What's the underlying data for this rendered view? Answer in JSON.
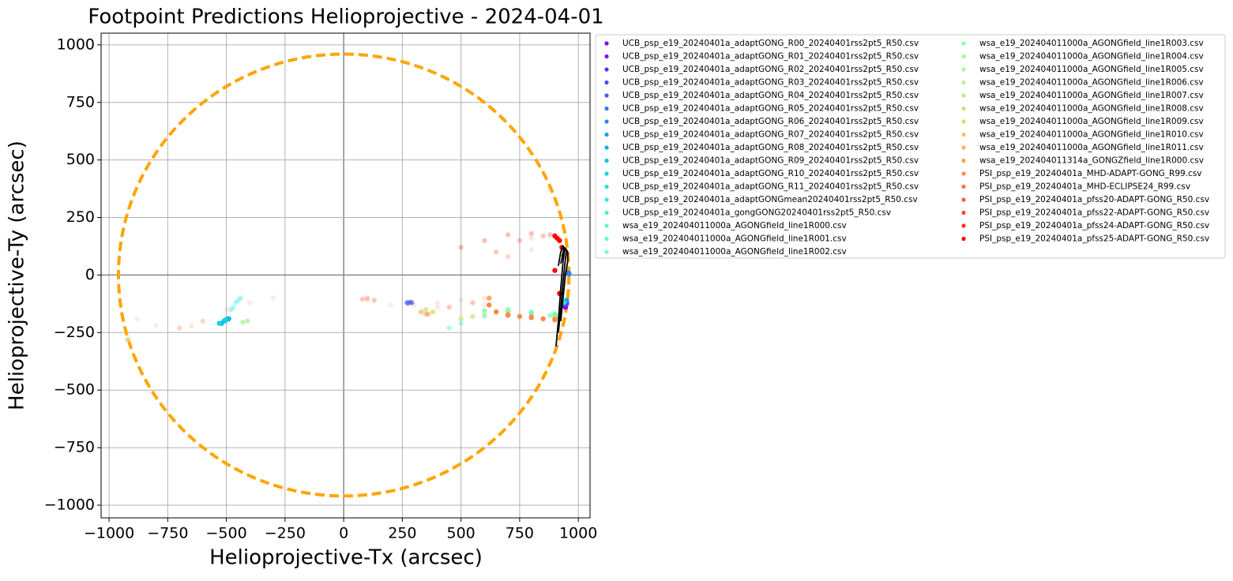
{
  "chart_data": {
    "type": "scatter",
    "title": "Footpoint Predictions Helioprojective - 2024-04-01",
    "x_label": "Helioprojective-Tx (arcsec)",
    "y_label": "Helioprojective-Ty (arcsec)",
    "xlim": [
      -1034,
      1050
    ],
    "ylim": [
      -1055,
      1051
    ],
    "xticks": [
      {
        "value": -1000,
        "label": "−1000"
      },
      {
        "value": -750,
        "label": "−750"
      },
      {
        "value": -500,
        "label": "−500"
      },
      {
        "value": -250,
        "label": "−250"
      },
      0,
      250,
      500,
      750,
      1000
    ],
    "yticks": [
      {
        "value": -1000,
        "label": "−1000"
      },
      {
        "value": -750,
        "label": "−750"
      },
      {
        "value": -500,
        "label": "−500"
      },
      {
        "value": -250,
        "label": "−250"
      },
      0,
      250,
      500,
      750,
      1000
    ],
    "grid": true,
    "legend": "outside-right",
    "limb": {
      "radius": 960,
      "color": "#ffa500"
    },
    "lines": [
      {
        "color": "#000000",
        "x": [
          905,
          915,
          925,
          935,
          942,
          935,
          925,
          915
        ],
        "y": [
          -310,
          -200,
          -60,
          60,
          110,
          125,
          100,
          40
        ]
      },
      {
        "color": "#000000",
        "x": [
          915,
          925,
          935,
          945,
          950,
          940,
          930
        ],
        "y": [
          -250,
          -150,
          -30,
          70,
          110,
          120,
          80
        ]
      },
      {
        "color": "#000000",
        "x": [
          925,
          935,
          945,
          955,
          955,
          945,
          935,
          925
        ],
        "y": [
          -200,
          -100,
          0,
          60,
          100,
          115,
          90,
          50
        ]
      }
    ],
    "series": [
      {
        "name": "UCB_psp_e19_20240401a_adaptGONG_R00_20240401rss2pt5_R50.csv",
        "color": "#8000ff",
        "alpha": 1,
        "x": [
          945,
          950
        ],
        "y": [
          -140,
          -120
        ]
      },
      {
        "name": "UCB_psp_e19_20240401a_adaptGONG_R01_20240401rss2pt5_R50.csv",
        "color": "#7018ff",
        "alpha": 1,
        "x": [
          945
        ],
        "y": [
          -130
        ]
      },
      {
        "name": "UCB_psp_e19_20240401a_adaptGONG_R02_20240401rss2pt5_R50.csv",
        "color": "#6130fe",
        "alpha": 1,
        "x": [
          950
        ],
        "y": [
          -125
        ]
      },
      {
        "name": "UCB_psp_e19_20240401a_adaptGONG_R03_20240401rss2pt5_R50.csv",
        "color": "#5148fc",
        "alpha": 0.6,
        "x": [
          270,
          285
        ],
        "y": [
          -120,
          -118
        ]
      },
      {
        "name": "UCB_psp_e19_20240401a_adaptGONG_R04_20240401rss2pt5_R50.csv",
        "color": "#425ffa",
        "alpha": 0.6,
        "x": [
          275,
          290
        ],
        "y": [
          -122,
          -120
        ]
      },
      {
        "name": "UCB_psp_e19_20240401a_adaptGONG_R05_20240401rss2pt5_R50.csv",
        "color": "#3275f8",
        "alpha": 1,
        "x": [
          955,
          960
        ],
        "y": [
          10,
          5
        ]
      },
      {
        "name": "UCB_psp_e19_20240401a_adaptGONG_R06_20240401rss2pt5_R50.csv",
        "color": "#238af5",
        "alpha": 1,
        "x": [
          960
        ],
        "y": [
          8
        ]
      },
      {
        "name": "UCB_psp_e19_20240401a_adaptGONG_R07_20240401rss2pt5_R50.csv",
        "color": "#139ef1",
        "alpha": 1,
        "x": [
          950
        ],
        "y": [
          -110
        ]
      },
      {
        "name": "UCB_psp_e19_20240401a_adaptGONG_R08_20240401rss2pt5_R50.csv",
        "color": "#04b0ed",
        "alpha": 1,
        "x": [
          -500,
          -490
        ],
        "y": [
          -195,
          -190
        ]
      },
      {
        "name": "UCB_psp_e19_20240401a_adaptGONG_R09_20240401rss2pt5_R50.csv",
        "color": "#0cc1e8",
        "alpha": 1,
        "x": [
          -520,
          -510,
          -495
        ],
        "y": [
          -210,
          -200,
          -190
        ]
      },
      {
        "name": "UCB_psp_e19_20240401a_adaptGONG_R10_20240401rss2pt5_R50.csv",
        "color": "#1bd0e2",
        "alpha": 1,
        "x": [
          -530,
          -505
        ],
        "y": [
          -210,
          -195
        ]
      },
      {
        "name": "UCB_psp_e19_20240401a_adaptGONG_R11_20240401rss2pt5_R50.csv",
        "color": "#2bdddd",
        "alpha": 1,
        "x": [
          940
        ],
        "y": [
          -120
        ]
      },
      {
        "name": "UCB_psp_e19_20240401a_adaptGONGmean20240401rss2pt5_R50.csv",
        "color": "#3ae8d6",
        "alpha": 0.4,
        "x": [
          -480,
          -460,
          -440
        ],
        "y": [
          -150,
          -120,
          -100
        ]
      },
      {
        "name": "UCB_psp_e19_20240401a_gongGONG20240401rss2pt5_R50.csv",
        "color": "#49f1d0",
        "alpha": 0.4,
        "x": [
          -470,
          -450
        ],
        "y": [
          -140,
          -110
        ]
      },
      {
        "name": "wsa_e19_202404011000a_AGONGfield_line1R000.csv",
        "color": "#59f8c8",
        "alpha": 0.5,
        "x": [
          450,
          500,
          600,
          700,
          800,
          900
        ],
        "y": [
          -230,
          -210,
          -180,
          -160,
          -165,
          -175
        ]
      },
      {
        "name": "wsa_e19_202404011000a_AGONGfield_line1R001.csv",
        "color": "#68fcc1",
        "alpha": 0.8,
        "x": [
          600,
          700,
          800,
          900
        ],
        "y": [
          -155,
          -155,
          -165,
          -170
        ]
      },
      {
        "name": "wsa_e19_202404011000a_AGONGfield_line1R002.csv",
        "color": "#78ffb9",
        "alpha": 0.8,
        "x": [
          700,
          800,
          900
        ],
        "y": [
          -150,
          -160,
          -170
        ]
      },
      {
        "name": "wsa_e19_202404011000a_AGONGfield_line1R003.csv",
        "color": "#87ffb0",
        "alpha": 0.8,
        "x": [
          880,
          920
        ],
        "y": [
          -175,
          -180
        ]
      },
      {
        "name": "wsa_e19_202404011000a_AGONGfield_line1R004.csv",
        "color": "#97fca7",
        "alpha": 0.8,
        "x": [
          900
        ],
        "y": [
          -185
        ]
      },
      {
        "name": "wsa_e19_202404011000a_AGONGfield_line1R005.csv",
        "color": "#a6f89e",
        "alpha": 0.8,
        "x": [
          650,
          700
        ],
        "y": [
          -160,
          -155
        ]
      },
      {
        "name": "wsa_e19_202404011000a_AGONGfield_line1R006.csv",
        "color": "#b6f194",
        "alpha": 0.8,
        "x": [
          -430,
          -410
        ],
        "y": [
          -205,
          -200
        ]
      },
      {
        "name": "wsa_e19_202404011000a_AGONGfield_line1R007.csv",
        "color": "#c5e88a",
        "alpha": 0.8,
        "x": [
          500,
          550,
          600
        ],
        "y": [
          -190,
          -180,
          -170
        ]
      },
      {
        "name": "wsa_e19_202404011000a_AGONGfield_line1R008.csv",
        "color": "#d4dd80",
        "alpha": 0.8,
        "x": [
          350,
          380
        ],
        "y": [
          -150,
          -160
        ]
      },
      {
        "name": "wsa_e19_202404011000a_AGONGfield_line1R009.csv",
        "color": "#e4d075",
        "alpha": 0.8,
        "x": [
          -920
        ],
        "y": [
          -280
        ]
      },
      {
        "name": "wsa_e19_202404011000a_AGONGfield_line1R010.csv",
        "color": "#f3c16a",
        "alpha": 0.8,
        "x": [
          330,
          360
        ],
        "y": [
          -160,
          -170
        ]
      },
      {
        "name": "wsa_e19_202404011000a_AGONGfield_line1R011.csv",
        "color": "#ffb05f",
        "alpha": 0.8,
        "x": [
          900
        ],
        "y": [
          -190
        ]
      },
      {
        "name": "wsa_e19_202404011314a_GONGZfield_line1R000.csv",
        "color": "#ff9e53",
        "alpha": 0.9,
        "x": [
          620,
          700,
          800,
          900
        ],
        "y": [
          -100,
          -170,
          -180,
          -190
        ]
      },
      {
        "name": "PSI_psp_e19_20240401a_MHD-ADAPT-GONG_R99.csv",
        "color": "#ff8a48",
        "alpha": 1,
        "x": [
          620,
          650,
          700,
          750,
          800,
          850,
          900
        ],
        "y": [
          -130,
          -160,
          -175,
          -180,
          -185,
          -190,
          -195
        ]
      },
      {
        "name": "PSI_psp_e19_20240401a_MHD-ECLIPSE24_R99.csv",
        "color": "#ff753c",
        "alpha": 0.15,
        "x": [
          -880,
          -800,
          -700,
          -600,
          -500,
          -400,
          -300,
          100,
          200,
          400,
          600,
          700,
          800
        ],
        "y": [
          -190,
          -220,
          -230,
          -200,
          -150,
          -120,
          -100,
          -110,
          -130,
          -140,
          -130,
          80,
          160
        ]
      },
      {
        "name": "PSI_psp_e19_20240401a_pfss20-ADAPT-GONG_R50.csv",
        "color": "#ff5f30",
        "alpha": 0.15,
        "x": [
          -700,
          -650,
          -600,
          300,
          400,
          500,
          600,
          700,
          800
        ],
        "y": [
          -230,
          -220,
          -200,
          -130,
          -120,
          -110,
          -100,
          80,
          110
        ]
      },
      {
        "name": "PSI_psp_e19_20240401a_pfss22-ADAPT-GONG_R50.csv",
        "color": "#ff4824",
        "alpha": 0.3,
        "x": [
          80,
          100,
          130,
          350,
          450,
          550,
          650,
          750,
          850
        ],
        "y": [
          -105,
          -100,
          -110,
          -170,
          -140,
          -120,
          100,
          150,
          170
        ]
      },
      {
        "name": "PSI_psp_e19_20240401a_pfss24-ADAPT-GONG_R50.csv",
        "color": "#ff3018",
        "alpha": 0.3,
        "x": [
          500,
          600,
          700,
          800,
          880
        ],
        "y": [
          120,
          150,
          175,
          180,
          175
        ]
      },
      {
        "name": "PSI_psp_e19_20240401a_pfss25-ADAPT-GONG_R50.csv",
        "color": "#ff0000",
        "alpha": 1,
        "x": [
          900,
          910,
          920,
          930,
          900,
          920
        ],
        "y": [
          170,
          160,
          150,
          120,
          20,
          -80
        ]
      }
    ]
  }
}
